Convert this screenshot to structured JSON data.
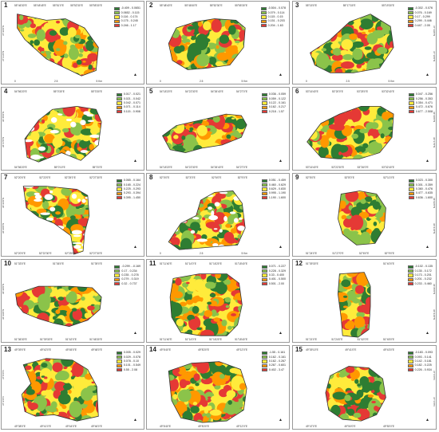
{
  "colors": {
    "c1": "#2e7d32",
    "c2": "#8bc34a",
    "c3": "#ffeb3b",
    "c4": "#ff9800",
    "c5": "#e53935"
  },
  "panels": [
    {
      "num": "1",
      "legend": [
        "-0.409 - 0.0651",
        "0.0652 - 0.115",
        "0.116 - 0.174",
        "0.175 - 0.245",
        "0.246 - 1.17"
      ],
      "top": [
        "55°46'30\"E",
        "55°48'45\"E",
        "55°51'0\"E",
        "55°52'30\"E",
        "55°55'30\"E"
      ],
      "bot": [
        "0",
        "2.5",
        "5 Km"
      ],
      "left": [
        "37°21'0\"N",
        "37°20'0\"N"
      ],
      "right": []
    },
    {
      "num": "2",
      "legend": [
        "-0.504 - 0.078",
        "0.079 - 0.114",
        "0.115 - 0.15",
        "0.151 - 0.203",
        "0.204 - 1.63"
      ],
      "top": [
        "55°48'40\"E",
        "55°48'40\"E",
        "55°52'30\"E",
        "55°55'30\"E"
      ],
      "bot": [
        "0",
        "2.5",
        "5 Km"
      ],
      "left": [],
      "right": []
    },
    {
      "num": "3",
      "legend": [
        "-0.302 - 0.076",
        "0.076 - 0.169",
        "0.17 - 0.299",
        "0.299 - 0.446",
        "0.447 - 2.05"
      ],
      "top": [
        "55°15'0\"E",
        "55°17'15\"E",
        "55°19'30\"E"
      ],
      "bot": [
        "0",
        "2.5",
        "5 Km"
      ],
      "left": [],
      "right": [
        "37°19'0\"N",
        "37°18'0\"N"
      ]
    },
    {
      "num": "4",
      "legend": [
        "0.017 - 0.021",
        "0.021 - 0.042",
        "0.042 - 0.071",
        "0.071 - 0.114",
        "0.115 - 0.908"
      ],
      "top": [
        "54°56'20\"E",
        "55°0'30\"E",
        "55°3'30\"E"
      ],
      "bot": [
        "54°56'20\"E",
        "55°0'10\"E",
        "55°3'0\"E"
      ],
      "left": [
        "36°47'0\"N",
        "36°45'0\"N"
      ],
      "right": []
    },
    {
      "num": "5",
      "legend": [
        "0.036 - 0.059",
        "0.059 - 0.122",
        "0.122 - 0.161",
        "0.162 - 0.217",
        "0.218 - 1.57"
      ],
      "top": [
        "54°18'20\"E",
        "54°22'30\"E",
        "54°26'40\"E",
        "54°27'0\"E"
      ],
      "bot": [
        "54°18'20\"E",
        "54°22'30\"E",
        "54°26'40\"E",
        "54°27'0\"E"
      ],
      "left": [],
      "right": []
    },
    {
      "num": "6",
      "legend": [
        "0.047 - 0.256",
        "0.256 - 0.353",
        "0.354 - 0.471",
        "0.472 - 0.676",
        "0.677 - 2.508"
      ],
      "top": [
        "53°16'40\"E",
        "53°20'0\"E",
        "53°25'0\"E",
        "53°32'40\"E"
      ],
      "bot": [
        "53°16'40\"E",
        "53°22'30\"E",
        "53°26'0\"E",
        "53°32'40\"E"
      ],
      "left": [],
      "right": [
        "36°38'0\"N",
        "36°37'0\"N"
      ]
    },
    {
      "num": "7",
      "legend": [
        "0.065 - 0.164",
        "0.165 - 0.224",
        "0.225 - 0.293",
        "0.293 - 0.394",
        "0.395 - 1.450"
      ],
      "top": [
        "52°20'0\"E",
        "52°22'0\"E",
        "52°25'0\"E",
        "52°27'30\"E"
      ],
      "bot": [
        "52°20'0\"E",
        "52°22'30\"E",
        "52°25'0\"E",
        "52°27'30\"E"
      ],
      "left": [
        "36°28'0\"N",
        "36°26'0\"N"
      ],
      "right": []
    },
    {
      "num": "8",
      "legend": [
        "0.051 - 0.459",
        "0.460 - 0.629",
        "0.629 - 0.830",
        "0.995 - 1.190",
        "1.190 - 1.600"
      ],
      "top": [
        "52°0'0\"E",
        "52°3'0\"E",
        "52°6'0\"E",
        "52°9'0\"E"
      ],
      "bot": [
        "0",
        "2.5",
        "5 Km"
      ],
      "left": [],
      "right": []
    },
    {
      "num": "9",
      "legend": [
        "0.023 - 0.300",
        "0.301 - 0.359",
        "0.360 - 0.476",
        "0.477 - 0.635",
        "0.636 - 1.600"
      ],
      "top": [
        "52°5'0\"E",
        "52°8'0\"E",
        "52°11'0\"E"
      ],
      "bot": [
        "51°24'0\"E",
        "51°27'0\"E",
        "52°6'0\"E",
        "52°9'0\"E"
      ],
      "left": [],
      "right": [
        "36°22'0\"N",
        "36°21'0\"N"
      ]
    },
    {
      "num": "10",
      "legend": [
        "-0.299 - -0.169",
        "0.17 - 0.234",
        "0.235 - 0.278",
        "0.279 - 0.319",
        "0.32 - 0.737"
      ],
      "top": [
        "51°33'0\"E",
        "51°36'0\"E",
        "51°39'0\"E"
      ],
      "bot": [
        "51°36'30\"E",
        "51°39'30\"E",
        "51°42'0\"E",
        "51°46'30\"E"
      ],
      "left": [
        "36°29'0\"N",
        "36°28'0\"N"
      ],
      "right": []
    },
    {
      "num": "11",
      "legend": [
        "0.071 - 0.227",
        "0.228 - 0.329",
        "0.33 - 0.400",
        "0.401 - 0.500",
        "0.501 - 2.00"
      ],
      "top": [
        "51°11'40\"E",
        "51°14'0\"E",
        "51°16'20\"E",
        "51°18'40\"E"
      ],
      "bot": [
        "51°11'40\"E",
        "51°14'0\"E",
        "51°16'20\"E",
        "51°18'40\"E"
      ],
      "left": [],
      "right": []
    },
    {
      "num": "12",
      "legend": [
        "-0.102 - 0.135",
        "0.135 - 0.172",
        "0.173 - 0.201",
        "0.201 - 0.232",
        "0.233 - 0.460"
      ],
      "top": [
        "51°39'30\"E",
        "51°40'0\"E"
      ],
      "bot": [
        "51°21'0\"E",
        "51°24'0\"E",
        "51°42'0\"E",
        "51°45'0\"E"
      ],
      "left": [],
      "right": [
        "36°25'0\"N",
        "36°24'0\"N"
      ]
    },
    {
      "num": "13",
      "legend": [
        "0.005 - 0.029",
        "0.029 - 0.078",
        "0.078 - 0.10",
        "0.101 - 0.549",
        "0.55 - 2.08"
      ],
      "top": [
        "49°39'0\"E",
        "49°42'0\"E",
        "49°45'0\"E",
        "49°48'0\"E"
      ],
      "bot": [
        "49°38'0\"E",
        "49°41'0\"E",
        "49°44'0\"E",
        "49°46'0\"E"
      ],
      "left": [
        "37°2'0\"N",
        "37°0'0\"N"
      ],
      "right": []
    },
    {
      "num": "14",
      "legend": [
        "-1.55 - 0.161",
        "0.162 - 0.161",
        "0.162 - 0.267",
        "0.267 - 0.601",
        "0.402 - 3.47"
      ],
      "top": [
        "49°6'40\"E",
        "49°8'20\"E",
        "49°12'0\"E"
      ],
      "bot": [
        "49°6'40\"E",
        "49°8'20\"E",
        "49°12'0\"E"
      ],
      "left": [],
      "right": []
    },
    {
      "num": "15",
      "legend": [
        "-0.183 - 0.093",
        "0.093 - 0.141",
        "0.142 - 0.181",
        "0.182 - 0.225",
        "0.226 - 0.934"
      ],
      "top": [
        "49°39'10\"E",
        "49°41'0\"E",
        "49°43'0\"E"
      ],
      "bot": [
        "49°47'0\"E",
        "49°50'0\"E",
        "49°53'0\"E"
      ],
      "left": [],
      "right": [
        "37°2'0\"N",
        "37°1'0\"N"
      ]
    }
  ]
}
